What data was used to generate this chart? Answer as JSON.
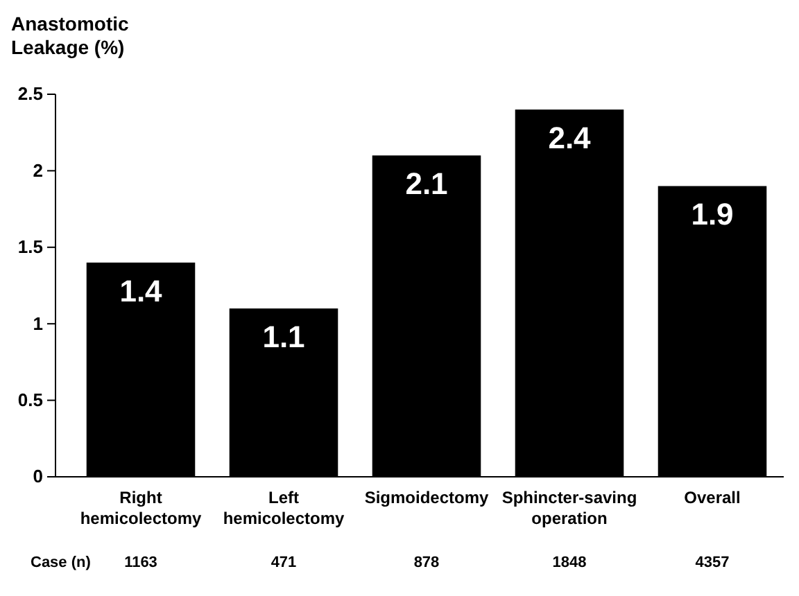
{
  "chart_data": {
    "type": "bar",
    "ylabel": "Anastomotic Leakage (%)",
    "categories": [
      "Right hemicolectomy",
      "Left hemicolectomy",
      "Sigmoidectomy",
      "Sphincter-saving operation",
      "Overall"
    ],
    "values": [
      1.4,
      1.1,
      2.1,
      2.4,
      1.9
    ],
    "color": "#000000",
    "data_labels": true,
    "ylim": [
      0,
      2.5
    ],
    "yticks": [
      0,
      0.5,
      1,
      1.5,
      2,
      2.5
    ],
    "grid": false,
    "annotations": [
      "Case (n)",
      "1163",
      "471",
      "878",
      "1848",
      "4357"
    ]
  }
}
